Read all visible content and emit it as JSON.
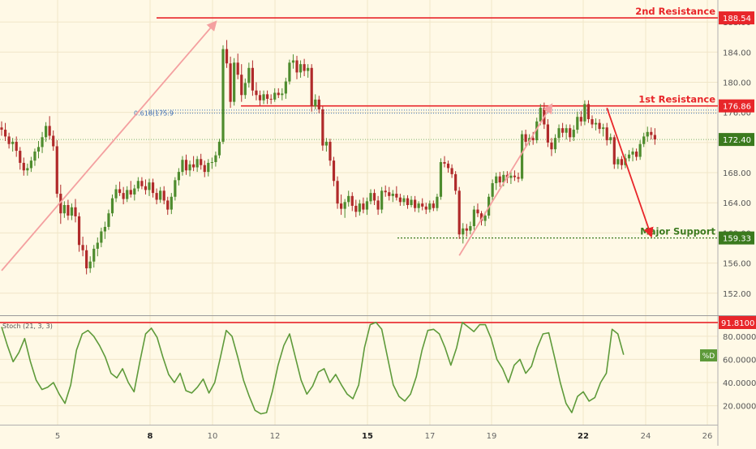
{
  "chart_data": [
    {
      "type": "candlestick",
      "x_ticks": [
        "5",
        "8",
        "10",
        "12",
        "15",
        "17",
        "19",
        "22",
        "24",
        "26"
      ],
      "bold_ticks": [
        "8",
        "15",
        "22"
      ],
      "y_ticks": [
        "152.00",
        "156.00",
        "160.00",
        "164.00",
        "168.00",
        "172.00",
        "176.00",
        "180.00",
        "184.00",
        "188.00"
      ],
      "ylim": [
        149.5,
        190.7
      ],
      "current_price": "172.40",
      "current_price_value": 172.4,
      "levels": [
        {
          "name": "2nd Resistance",
          "value": 188.54,
          "price": "188.54",
          "color": "#E8262A"
        },
        {
          "name": "1st Resistance",
          "value": 176.86,
          "price": "176.86",
          "color": "#E8262A"
        },
        {
          "name": "Major Support",
          "value": 159.33,
          "price": "159.33",
          "color": "#3B7A1E"
        }
      ],
      "fib_label": "0.618(175.9",
      "fib_values": [
        176.3,
        175.9
      ],
      "candles_ohlc": [
        [
          174.0,
          174.8,
          172.9,
          173.7
        ],
        [
          173.7,
          174.6,
          172.2,
          172.8
        ],
        [
          172.8,
          173.3,
          171.2,
          171.8
        ],
        [
          171.8,
          172.6,
          170.8,
          172.1
        ],
        [
          172.1,
          172.8,
          170.1,
          170.9
        ],
        [
          170.9,
          171.4,
          168.4,
          169.3
        ],
        [
          169.3,
          170.0,
          167.6,
          168.3
        ],
        [
          168.3,
          169.2,
          167.6,
          168.6
        ],
        [
          168.6,
          170.1,
          168.1,
          169.6
        ],
        [
          169.6,
          171.2,
          168.9,
          170.8
        ],
        [
          170.8,
          172.2,
          169.9,
          171.4
        ],
        [
          171.4,
          173.4,
          170.6,
          172.7
        ],
        [
          172.7,
          174.7,
          172.1,
          174.2
        ],
        [
          174.2,
          175.5,
          172.4,
          172.9
        ],
        [
          172.9,
          173.6,
          170.9,
          171.5
        ],
        [
          171.5,
          172.3,
          164.7,
          165.2
        ],
        [
          165.2,
          166.4,
          161.2,
          162.6
        ],
        [
          162.6,
          164.2,
          162.0,
          163.7
        ],
        [
          163.7,
          164.4,
          161.7,
          162.3
        ],
        [
          162.3,
          163.9,
          161.7,
          163.4
        ],
        [
          163.4,
          164.5,
          161.4,
          162.2
        ],
        [
          162.2,
          162.7,
          157.5,
          158.4
        ],
        [
          158.4,
          159.5,
          156.9,
          157.7
        ],
        [
          157.7,
          158.4,
          154.5,
          155.3
        ],
        [
          155.3,
          156.9,
          154.7,
          156.2
        ],
        [
          156.2,
          158.4,
          155.4,
          157.9
        ],
        [
          157.9,
          159.4,
          156.9,
          158.7
        ],
        [
          158.7,
          160.7,
          158.1,
          160.2
        ],
        [
          160.2,
          161.5,
          159.2,
          160.8
        ],
        [
          160.8,
          163.1,
          160.4,
          162.6
        ],
        [
          162.6,
          165.1,
          162.2,
          164.6
        ],
        [
          164.6,
          166.4,
          164.1,
          165.8
        ],
        [
          165.8,
          166.8,
          164.9,
          165.3
        ],
        [
          165.3,
          166.1,
          163.8,
          164.5
        ],
        [
          164.5,
          166.2,
          164.1,
          165.7
        ],
        [
          165.7,
          166.9,
          164.7,
          165.1
        ],
        [
          165.1,
          166.4,
          164.3,
          165.9
        ],
        [
          165.9,
          167.4,
          165.5,
          166.9
        ],
        [
          166.9,
          167.4,
          165.8,
          166.2
        ],
        [
          166.2,
          167.1,
          165.1,
          165.7
        ],
        [
          165.7,
          167.2,
          164.9,
          166.7
        ],
        [
          166.7,
          167.2,
          164.7,
          165.3
        ],
        [
          165.3,
          165.9,
          163.8,
          164.4
        ],
        [
          164.4,
          166.1,
          164.0,
          165.6
        ],
        [
          165.6,
          166.2,
          163.8,
          164.3
        ],
        [
          164.3,
          164.8,
          162.4,
          163.1
        ],
        [
          163.1,
          165.3,
          162.5,
          164.8
        ],
        [
          164.8,
          167.4,
          164.3,
          167.0
        ],
        [
          167.0,
          168.6,
          166.3,
          168.1
        ],
        [
          168.1,
          170.2,
          167.6,
          169.7
        ],
        [
          169.7,
          170.4,
          167.7,
          168.3
        ],
        [
          168.3,
          169.6,
          167.5,
          169.1
        ],
        [
          169.1,
          170.2,
          168.2,
          168.7
        ],
        [
          168.7,
          170.2,
          168.1,
          169.8
        ],
        [
          169.8,
          170.5,
          168.4,
          169.0
        ],
        [
          169.0,
          169.6,
          167.4,
          168.1
        ],
        [
          168.1,
          169.8,
          167.5,
          169.3
        ],
        [
          169.3,
          170.0,
          168.5,
          169.4
        ],
        [
          169.4,
          170.8,
          168.8,
          170.3
        ],
        [
          170.3,
          172.5,
          169.9,
          172.1
        ],
        [
          172.1,
          184.9,
          171.8,
          184.4
        ],
        [
          184.4,
          185.6,
          181.9,
          182.5
        ],
        [
          182.5,
          183.4,
          176.6,
          177.4
        ],
        [
          177.4,
          183.2,
          176.9,
          182.6
        ],
        [
          182.6,
          183.8,
          180.4,
          181.0
        ],
        [
          181.0,
          182.4,
          177.4,
          178.3
        ],
        [
          178.3,
          180.5,
          177.8,
          179.9
        ],
        [
          179.9,
          182.6,
          179.3,
          181.9
        ],
        [
          181.9,
          182.9,
          178.2,
          178.9
        ],
        [
          178.9,
          180.0,
          177.6,
          178.3
        ],
        [
          178.3,
          178.9,
          176.9,
          177.6
        ],
        [
          177.6,
          178.9,
          177.1,
          178.4
        ],
        [
          178.4,
          178.9,
          177.1,
          177.8
        ],
        [
          177.8,
          178.4,
          177.1,
          177.7
        ],
        [
          177.7,
          179.2,
          177.4,
          178.6
        ],
        [
          178.6,
          179.2,
          177.9,
          178.3
        ],
        [
          178.3,
          179.2,
          177.6,
          178.5
        ],
        [
          178.5,
          180.6,
          177.8,
          180.1
        ],
        [
          180.1,
          183.0,
          179.7,
          182.6
        ],
        [
          182.6,
          183.7,
          181.8,
          182.9
        ],
        [
          182.9,
          183.5,
          180.4,
          181.3
        ],
        [
          181.3,
          182.9,
          180.6,
          182.4
        ],
        [
          182.4,
          183.1,
          180.8,
          181.5
        ],
        [
          181.5,
          182.4,
          180.6,
          181.9
        ],
        [
          181.9,
          182.4,
          176.1,
          176.8
        ],
        [
          176.8,
          178.4,
          176.4,
          177.7
        ],
        [
          177.7,
          178.2,
          175.9,
          176.4
        ],
        [
          176.4,
          176.8,
          170.9,
          171.6
        ],
        [
          171.6,
          172.6,
          170.8,
          172.1
        ],
        [
          172.1,
          172.5,
          168.9,
          169.6
        ],
        [
          169.6,
          170.1,
          166.2,
          166.9
        ],
        [
          166.9,
          167.5,
          163.2,
          163.9
        ],
        [
          163.9,
          165.1,
          162.4,
          163.2
        ],
        [
          163.2,
          164.5,
          162.0,
          164.1
        ],
        [
          164.1,
          165.6,
          163.5,
          164.9
        ],
        [
          164.9,
          165.4,
          162.9,
          163.6
        ],
        [
          163.6,
          164.4,
          162.1,
          162.8
        ],
        [
          162.8,
          164.4,
          162.3,
          163.9
        ],
        [
          163.9,
          164.7,
          162.6,
          163.1
        ],
        [
          163.1,
          164.7,
          162.4,
          164.2
        ],
        [
          164.2,
          165.8,
          163.8,
          165.3
        ],
        [
          165.3,
          165.8,
          163.7,
          164.3
        ],
        [
          164.3,
          164.9,
          162.4,
          163.1
        ],
        [
          163.1,
          166.1,
          162.6,
          165.6
        ],
        [
          165.6,
          166.3,
          164.8,
          165.4
        ],
        [
          165.4,
          166.1,
          164.3,
          164.9
        ],
        [
          164.9,
          165.7,
          164.1,
          165.2
        ],
        [
          165.2,
          166.2,
          164.3,
          164.7
        ],
        [
          164.7,
          165.2,
          163.6,
          164.1
        ],
        [
          164.1,
          165.0,
          163.6,
          164.6
        ],
        [
          164.6,
          165.0,
          163.2,
          163.7
        ],
        [
          163.7,
          164.9,
          163.4,
          164.4
        ],
        [
          164.4,
          164.9,
          162.8,
          163.3
        ],
        [
          163.3,
          164.2,
          162.7,
          163.9
        ],
        [
          163.9,
          164.6,
          163.0,
          163.5
        ],
        [
          163.5,
          164.0,
          162.5,
          163.1
        ],
        [
          163.1,
          164.3,
          162.7,
          163.9
        ],
        [
          163.9,
          164.3,
          162.9,
          163.3
        ],
        [
          163.3,
          165.2,
          162.9,
          164.8
        ],
        [
          164.8,
          169.9,
          164.4,
          169.4
        ],
        [
          169.4,
          170.2,
          168.7,
          169.2
        ],
        [
          169.2,
          169.6,
          168.0,
          168.6
        ],
        [
          168.6,
          169.1,
          167.3,
          167.8
        ],
        [
          167.8,
          168.2,
          165.1,
          165.6
        ],
        [
          165.6,
          166.1,
          159.2,
          159.8
        ],
        [
          159.8,
          161.3,
          158.6,
          160.6
        ],
        [
          160.6,
          161.2,
          159.5,
          160.3
        ],
        [
          160.3,
          161.5,
          159.8,
          160.9
        ],
        [
          160.9,
          163.6,
          160.4,
          163.1
        ],
        [
          163.1,
          163.9,
          162.1,
          162.6
        ],
        [
          162.6,
          162.9,
          161.0,
          161.6
        ],
        [
          161.6,
          162.8,
          160.9,
          162.3
        ],
        [
          162.3,
          165.2,
          161.9,
          164.8
        ],
        [
          164.8,
          167.1,
          164.3,
          166.6
        ],
        [
          166.6,
          168.0,
          165.7,
          167.5
        ],
        [
          167.5,
          168.1,
          166.1,
          166.7
        ],
        [
          166.7,
          168.2,
          166.2,
          167.7
        ],
        [
          167.7,
          168.2,
          166.6,
          167.3
        ],
        [
          167.3,
          168.1,
          166.5,
          167.6
        ],
        [
          167.6,
          168.3,
          166.9,
          167.4
        ],
        [
          167.4,
          168.0,
          166.7,
          167.2
        ],
        [
          167.2,
          173.6,
          166.9,
          173.1
        ],
        [
          173.1,
          173.7,
          171.4,
          172.1
        ],
        [
          172.1,
          173.1,
          171.6,
          172.6
        ],
        [
          172.6,
          173.4,
          171.7,
          172.3
        ],
        [
          172.3,
          175.3,
          171.9,
          174.8
        ],
        [
          174.8,
          177.1,
          174.3,
          176.6
        ],
        [
          176.6,
          177.3,
          173.8,
          174.4
        ],
        [
          174.4,
          175.1,
          171.4,
          172.0
        ],
        [
          172.0,
          172.6,
          170.2,
          171.1
        ],
        [
          171.1,
          173.1,
          170.6,
          172.6
        ],
        [
          172.6,
          174.4,
          172.0,
          173.9
        ],
        [
          173.9,
          174.6,
          172.7,
          173.3
        ],
        [
          173.3,
          174.4,
          172.4,
          173.9
        ],
        [
          173.9,
          174.4,
          172.1,
          172.7
        ],
        [
          172.7,
          174.3,
          172.2,
          173.7
        ],
        [
          173.7,
          176.1,
          173.2,
          175.4
        ],
        [
          175.4,
          176.2,
          174.2,
          174.8
        ],
        [
          174.8,
          177.6,
          174.3,
          177.1
        ],
        [
          177.1,
          177.6,
          174.6,
          175.1
        ],
        [
          175.1,
          175.6,
          173.9,
          174.4
        ],
        [
          174.4,
          175.2,
          173.6,
          174.6
        ],
        [
          174.6,
          175.1,
          173.2,
          173.8
        ],
        [
          173.8,
          174.5,
          172.8,
          174.0
        ],
        [
          174.0,
          174.6,
          171.6,
          172.3
        ],
        [
          172.3,
          173.2,
          171.8,
          172.7
        ],
        [
          172.7,
          173.0,
          168.5,
          169.1
        ],
        [
          169.1,
          170.1,
          168.5,
          169.8
        ],
        [
          169.8,
          170.2,
          168.4,
          169.0
        ],
        [
          169.0,
          170.5,
          168.6,
          169.9
        ],
        [
          169.9,
          171.0,
          169.5,
          170.4
        ],
        [
          170.4,
          171.3,
          169.5,
          170.8
        ],
        [
          170.8,
          171.2,
          169.6,
          170.1
        ],
        [
          170.1,
          172.3,
          169.7,
          171.8
        ],
        [
          171.8,
          173.3,
          171.4,
          172.8
        ],
        [
          172.8,
          174.1,
          172.1,
          173.4
        ],
        [
          173.4,
          174.0,
          172.4,
          173.0
        ],
        [
          173.0,
          173.9,
          171.7,
          172.4
        ]
      ],
      "arrows": [
        {
          "color": "#F4A0A0",
          "from": [
            0,
            155.0
          ],
          "to": [
            58,
            188.0
          ]
        },
        {
          "color": "#F4A0A0",
          "from": [
            124,
            157.0
          ],
          "to": [
            149,
            177.0
          ]
        },
        {
          "color": "#E8262A",
          "from": [
            164,
            176.6
          ],
          "to": [
            176,
            159.6
          ]
        }
      ]
    },
    {
      "type": "line",
      "indicator_label": "Stoch (21, 3, 3)",
      "series_tag": "%D",
      "level_label": "91.8100",
      "level_value": 91.81,
      "y_ticks": [
        "20.0000",
        "40.0000",
        "60.0000",
        "80.0000"
      ],
      "ylim": [
        5,
        96
      ],
      "values": [
        88,
        72,
        58,
        66,
        78,
        58,
        42,
        34,
        36,
        40,
        30,
        22,
        38,
        68,
        82,
        85,
        80,
        72,
        62,
        48,
        44,
        52,
        40,
        32,
        58,
        82,
        87,
        79,
        62,
        47,
        40,
        48,
        33,
        31,
        36,
        43,
        31,
        40,
        62,
        85,
        80,
        62,
        42,
        28,
        16,
        13,
        14,
        32,
        55,
        72,
        82,
        62,
        42,
        30,
        37,
        49,
        52,
        40,
        47,
        38,
        30,
        26,
        38,
        70,
        90,
        92,
        86,
        62,
        38,
        28,
        24,
        30,
        45,
        68,
        85,
        86,
        82,
        70,
        55,
        70,
        92,
        88,
        84,
        90,
        90,
        78,
        60,
        52,
        40,
        55,
        60,
        48,
        54,
        70,
        82,
        83,
        62,
        40,
        22,
        14,
        28,
        32,
        24,
        27,
        40,
        48,
        86,
        82,
        64
      ]
    }
  ]
}
